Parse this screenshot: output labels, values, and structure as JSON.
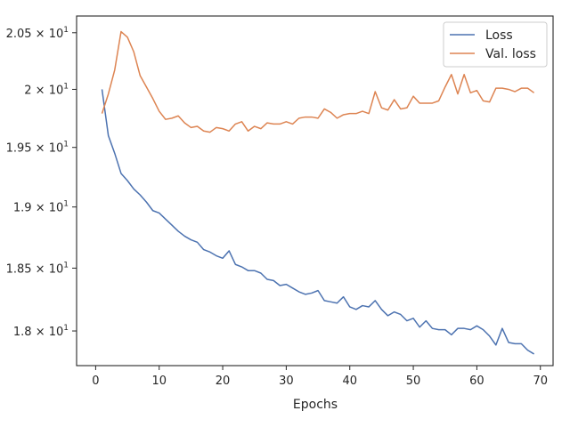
{
  "chart_data": {
    "type": "line",
    "title": "",
    "xlabel": "Epochs",
    "ylabel": "",
    "y_scale": "log",
    "xlim": [
      -3,
      72
    ],
    "ylim": [
      17.73,
      20.65
    ],
    "x_ticks": [
      0,
      10,
      20,
      30,
      40,
      50,
      60,
      70
    ],
    "x_tick_labels": [
      "0",
      "10",
      "20",
      "30",
      "40",
      "50",
      "60",
      "70"
    ],
    "y_ticks": [
      18.0,
      18.5,
      19.0,
      19.5,
      20.0,
      20.5
    ],
    "y_tick_labels": [
      {
        "base": "1.8",
        "mult": "10",
        "exp": "1"
      },
      {
        "base": "1.85",
        "mult": "10",
        "exp": "1"
      },
      {
        "base": "1.9",
        "mult": "10",
        "exp": "1"
      },
      {
        "base": "1.95",
        "mult": "10",
        "exp": "1"
      },
      {
        "base": "2",
        "mult": "10",
        "exp": "1"
      },
      {
        "base": "2.05",
        "mult": "10",
        "exp": "1"
      }
    ],
    "grid": false,
    "legend_position": "top-right",
    "x": [
      1,
      2,
      3,
      4,
      5,
      6,
      7,
      8,
      9,
      10,
      11,
      12,
      13,
      14,
      15,
      16,
      17,
      18,
      19,
      20,
      21,
      22,
      23,
      24,
      25,
      26,
      27,
      28,
      29,
      30,
      31,
      32,
      33,
      34,
      35,
      36,
      37,
      38,
      39,
      40,
      41,
      42,
      43,
      44,
      45,
      46,
      47,
      48,
      49,
      50,
      51,
      52,
      53,
      54,
      55,
      56,
      57,
      58,
      59,
      60,
      61,
      62,
      63,
      64,
      65,
      66,
      67,
      68,
      69
    ],
    "series": [
      {
        "name": "Loss",
        "color": "#4c72b0",
        "values": [
          20.0,
          19.6,
          19.45,
          19.28,
          19.22,
          19.15,
          19.1,
          19.04,
          18.97,
          18.95,
          18.9,
          18.85,
          18.8,
          18.76,
          18.73,
          18.71,
          18.65,
          18.63,
          18.6,
          18.58,
          18.64,
          18.53,
          18.51,
          18.48,
          18.48,
          18.46,
          18.41,
          18.4,
          18.36,
          18.37,
          18.34,
          18.31,
          18.29,
          18.3,
          18.32,
          18.24,
          18.23,
          18.22,
          18.27,
          18.19,
          18.17,
          18.2,
          18.19,
          18.24,
          18.17,
          18.12,
          18.15,
          18.13,
          18.08,
          18.1,
          18.03,
          18.08,
          18.02,
          18.01,
          18.01,
          17.97,
          18.02,
          18.02,
          18.01,
          18.04,
          18.01,
          17.96,
          17.89,
          18.02,
          17.91,
          17.9,
          17.9,
          17.85,
          17.82
        ]
      },
      {
        "name": "Val. loss",
        "color": "#dd8452",
        "values": [
          19.79,
          19.96,
          20.17,
          20.51,
          20.46,
          20.33,
          20.12,
          20.02,
          19.92,
          19.81,
          19.74,
          19.75,
          19.77,
          19.71,
          19.67,
          19.68,
          19.64,
          19.63,
          19.67,
          19.66,
          19.64,
          19.7,
          19.72,
          19.64,
          19.68,
          19.66,
          19.71,
          19.7,
          19.7,
          19.72,
          19.7,
          19.75,
          19.76,
          19.76,
          19.75,
          19.83,
          19.8,
          19.75,
          19.78,
          19.79,
          19.79,
          19.81,
          19.79,
          19.98,
          19.84,
          19.82,
          19.91,
          19.83,
          19.84,
          19.94,
          19.88,
          19.88,
          19.88,
          19.9,
          20.02,
          20.13,
          19.96,
          20.13,
          19.97,
          19.99,
          19.9,
          19.89,
          20.01,
          20.01,
          20.0,
          19.98,
          20.01,
          20.01,
          19.97
        ]
      }
    ]
  }
}
